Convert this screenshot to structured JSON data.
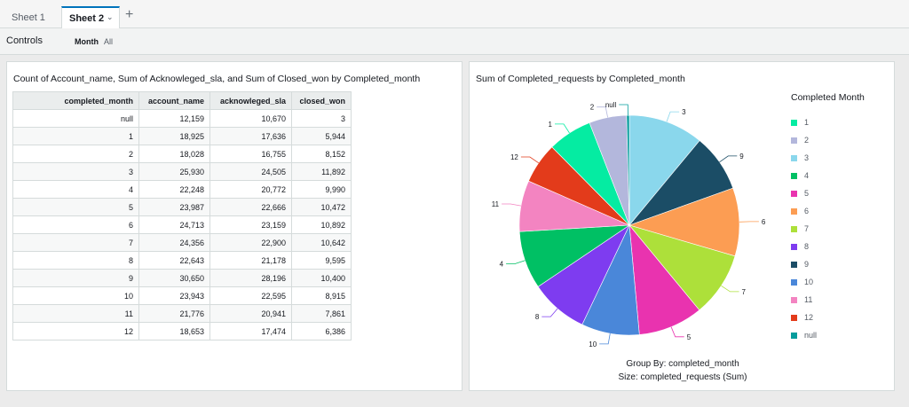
{
  "tabs": [
    {
      "label": "Sheet 1",
      "active": false
    },
    {
      "label": "Sheet 2",
      "active": true
    }
  ],
  "tab_add_icon": "plus-icon",
  "controls": {
    "title": "Controls",
    "month_label": "Month",
    "month_value": "All"
  },
  "table_visual": {
    "title": "Count of Account_name, Sum of Acknowleged_sla, and Sum of Closed_won by Completed_month",
    "columns": [
      "completed_month",
      "account_name",
      "acknowleged_sla",
      "closed_won"
    ],
    "rows": [
      [
        "null",
        "12,159",
        "10,670",
        "3"
      ],
      [
        "1",
        "18,925",
        "17,636",
        "5,944"
      ],
      [
        "2",
        "18,028",
        "16,755",
        "8,152"
      ],
      [
        "3",
        "25,930",
        "24,505",
        "11,892"
      ],
      [
        "4",
        "22,248",
        "20,772",
        "9,990"
      ],
      [
        "5",
        "23,987",
        "22,666",
        "10,472"
      ],
      [
        "6",
        "24,713",
        "23,159",
        "10,892"
      ],
      [
        "7",
        "24,356",
        "22,900",
        "10,642"
      ],
      [
        "8",
        "22,643",
        "21,178",
        "9,595"
      ],
      [
        "9",
        "30,650",
        "28,196",
        "10,400"
      ],
      [
        "10",
        "23,943",
        "22,595",
        "8,915"
      ],
      [
        "11",
        "21,776",
        "20,941",
        "7,861"
      ],
      [
        "12",
        "18,653",
        "17,474",
        "6,386"
      ]
    ]
  },
  "pie_visual": {
    "title": "Sum of Completed_requests by Completed_month",
    "legend_title": "Completed Month",
    "group_by": "Group By: completed_month",
    "size": "Size: completed_requests (Sum)"
  },
  "chart_data": {
    "type": "pie",
    "title": "Sum of Completed_requests by Completed_month",
    "legend_title": "Completed Month",
    "legend_position": "right",
    "slices": [
      {
        "label": "3",
        "value": 11,
        "color": "#8ad7ec"
      },
      {
        "label": "9",
        "value": 8.5,
        "color": "#1b4d66"
      },
      {
        "label": "6",
        "value": 10,
        "color": "#fc9d53"
      },
      {
        "label": "7",
        "value": 9.5,
        "color": "#ade03a"
      },
      {
        "label": "5",
        "value": 9.5,
        "color": "#e933af"
      },
      {
        "label": "10",
        "value": 8.5,
        "color": "#4a87d9"
      },
      {
        "label": "8",
        "value": 8.5,
        "color": "#7e3cf0"
      },
      {
        "label": "4",
        "value": 8.5,
        "color": "#00c064"
      },
      {
        "label": "11",
        "value": 7.5,
        "color": "#f384c1"
      },
      {
        "label": "12",
        "value": 6,
        "color": "#e33b1b"
      },
      {
        "label": "1",
        "value": 6.5,
        "color": "#05eca2"
      },
      {
        "label": "2",
        "value": 5.5,
        "color": "#b3b7dc"
      },
      {
        "label": "null",
        "value": 0.4,
        "color": "#059c9c"
      }
    ],
    "legend": [
      {
        "label": "1",
        "color": "#05eca2"
      },
      {
        "label": "2",
        "color": "#b3b7dc"
      },
      {
        "label": "3",
        "color": "#8ad7ec"
      },
      {
        "label": "4",
        "color": "#00c064"
      },
      {
        "label": "5",
        "color": "#e933af"
      },
      {
        "label": "6",
        "color": "#fc9d53"
      },
      {
        "label": "7",
        "color": "#ade03a"
      },
      {
        "label": "8",
        "color": "#7e3cf0"
      },
      {
        "label": "9",
        "color": "#1b4d66"
      },
      {
        "label": "10",
        "color": "#4a87d9"
      },
      {
        "label": "11",
        "color": "#f384c1"
      },
      {
        "label": "12",
        "color": "#e33b1b"
      },
      {
        "label": "null",
        "color": "#059c9c"
      }
    ]
  }
}
